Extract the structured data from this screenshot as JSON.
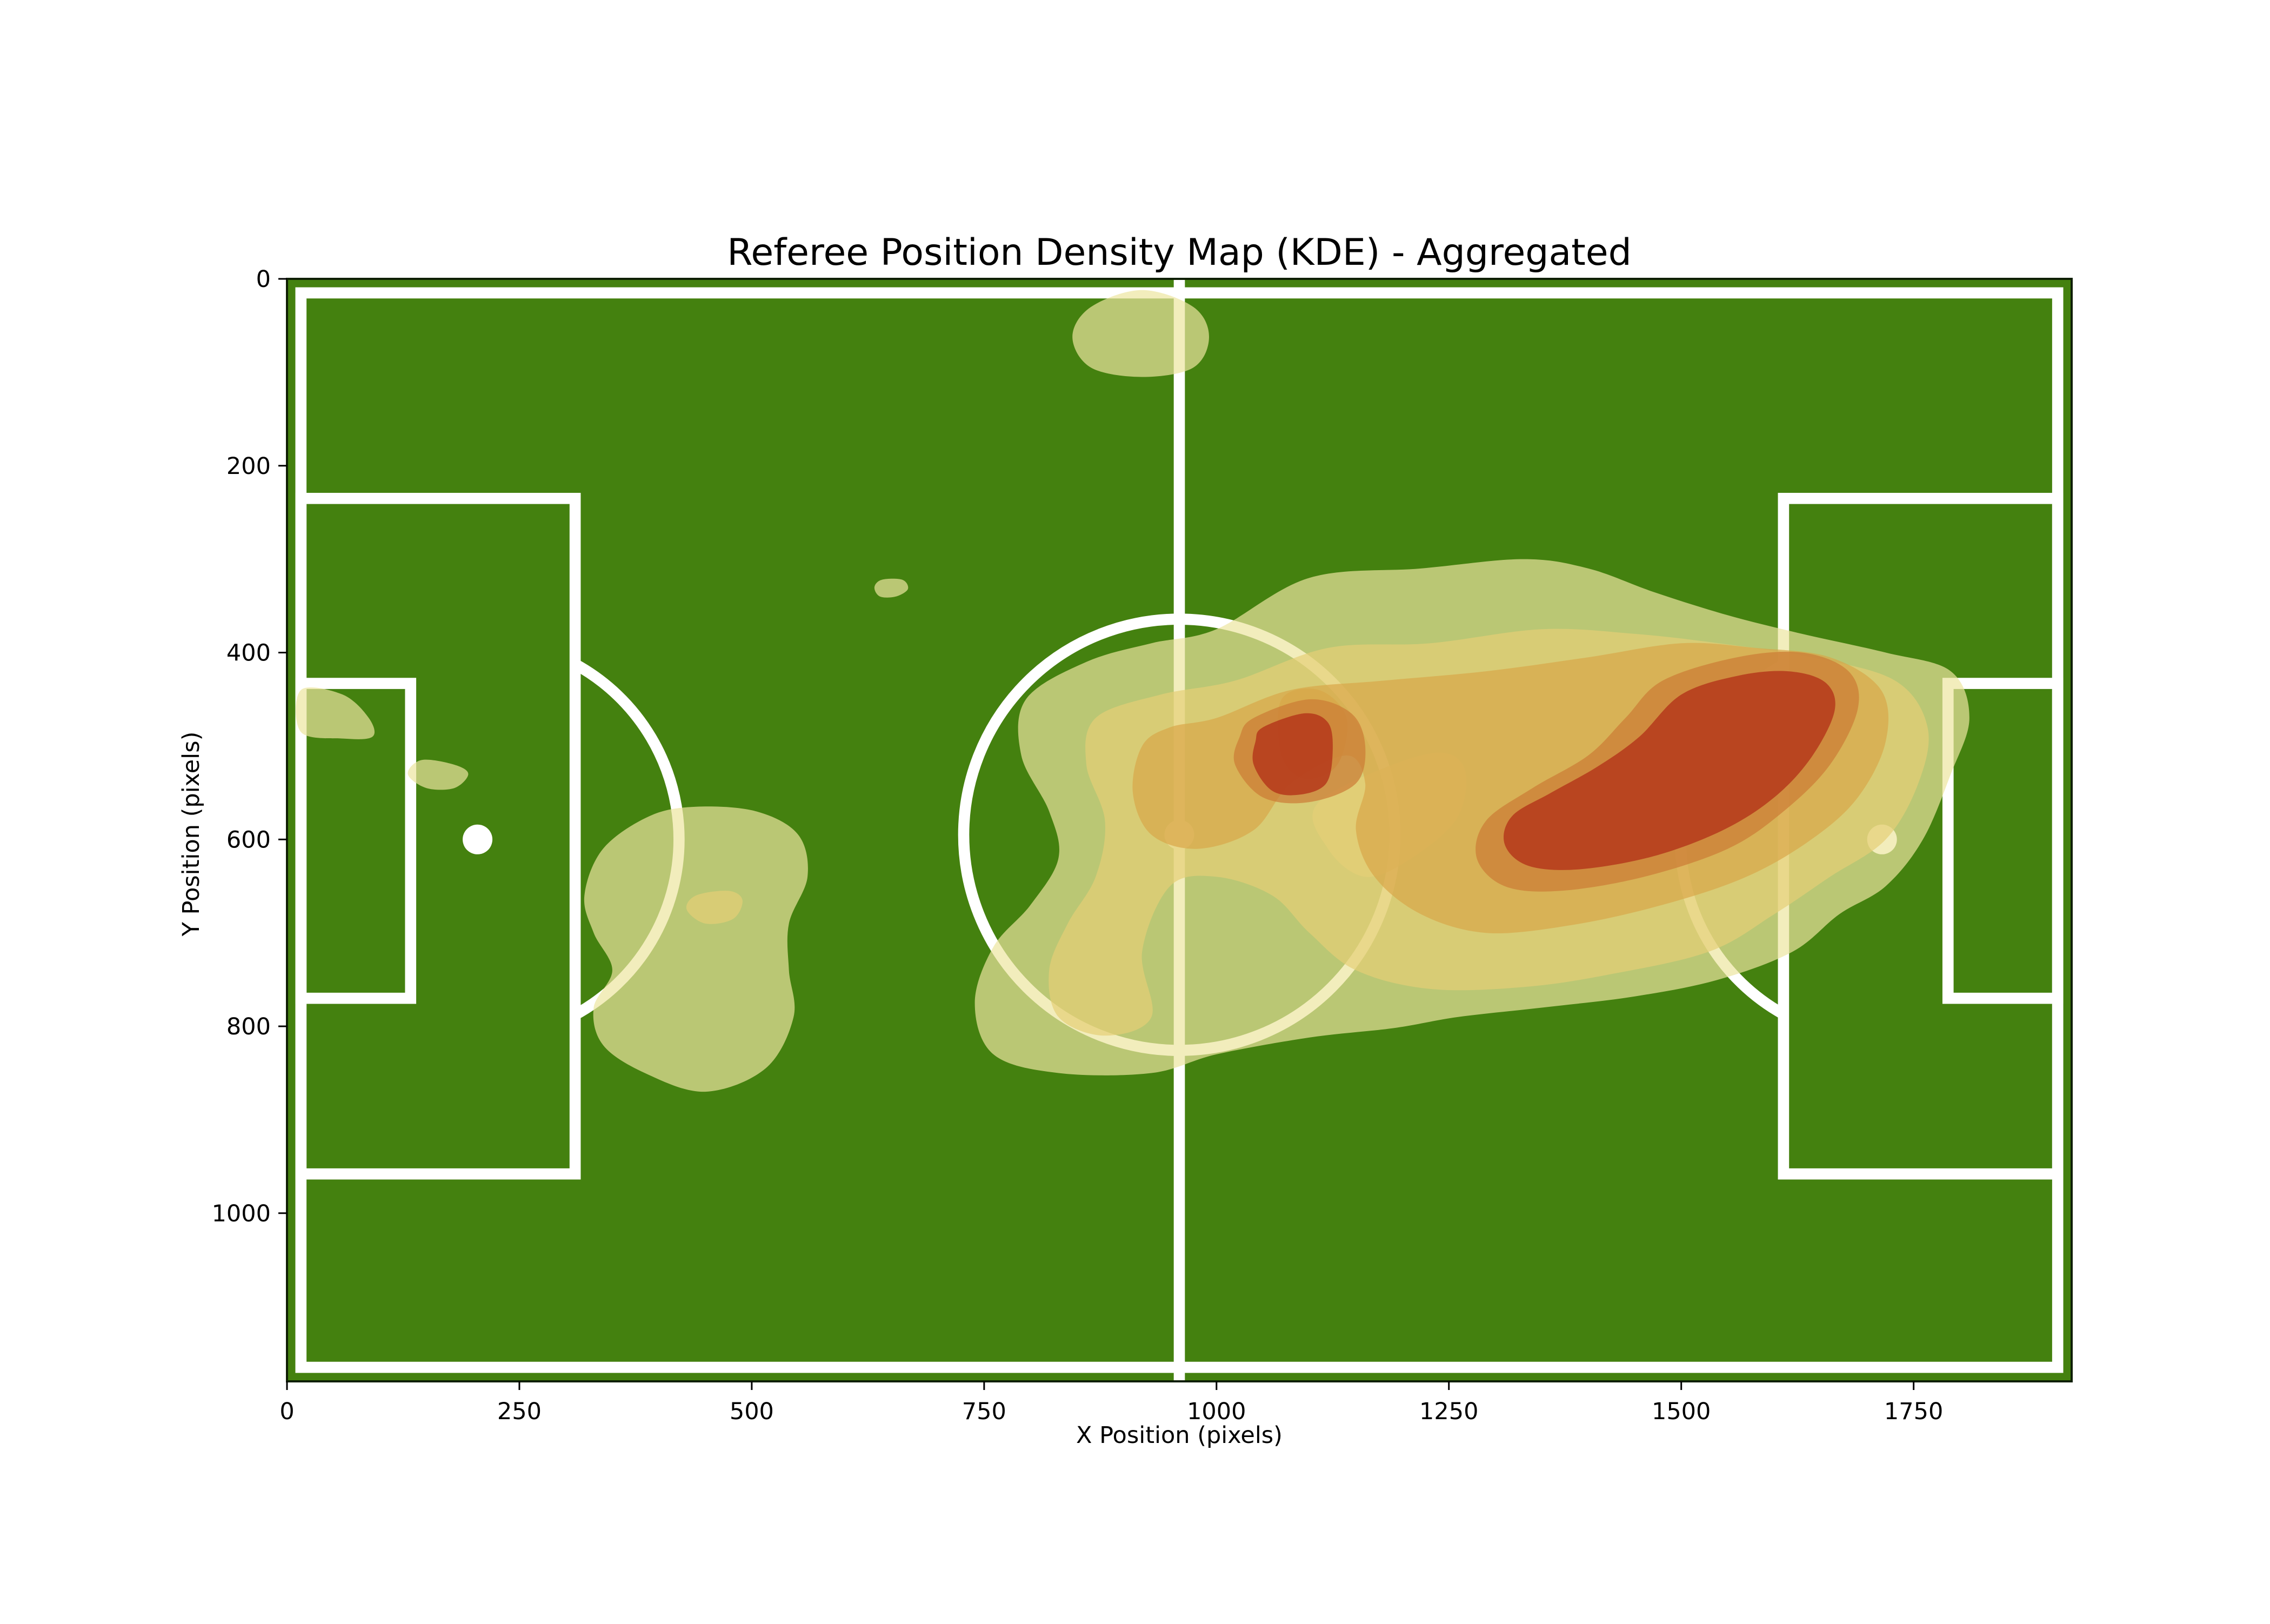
{
  "chart_data": {
    "type": "heatmap",
    "title": "Referee Position Density Map (KDE) - Aggregated",
    "xlabel": "X Position (pixels)",
    "ylabel": "Y Position (pixels)",
    "xlim": [
      0,
      1920
    ],
    "ylim": [
      1180,
      0
    ],
    "x_ticks": [
      0,
      250,
      500,
      750,
      1000,
      1250,
      1500,
      1750
    ],
    "y_ticks": [
      0,
      200,
      400,
      600,
      800,
      1000
    ],
    "y_inverted": true,
    "grid": false,
    "legend": "none",
    "colors": {
      "pitch": "#44810f",
      "lines": "#ffffff",
      "frame": "#0f1f04",
      "levels": [
        "#ede6a0",
        "#e6cf76",
        "#d9a748",
        "#cc7a34",
        "#b5381b"
      ]
    },
    "pitch_markings": {
      "outer": {
        "x0": 15,
        "y0": 15,
        "x1": 1905,
        "y1": 1165
      },
      "halfway_x": 960,
      "center": {
        "x": 960,
        "y": 595,
        "r": 232
      },
      "center_spot_r": 16,
      "penalty_box_left": {
        "x0": 15,
        "y0": 235,
        "x1": 310,
        "y1": 958
      },
      "penalty_box_right": {
        "x0": 1610,
        "y0": 235,
        "x1": 1905,
        "y1": 958
      },
      "goal_box_left": {
        "x0": 15,
        "y0": 433,
        "x1": 133,
        "y1": 770
      },
      "goal_box_right": {
        "x0": 1787,
        "y0": 433,
        "x1": 1905,
        "y1": 770
      },
      "penalty_spot_left": {
        "x": 205,
        "y": 600
      },
      "penalty_spot_right": {
        "x": 1716,
        "y": 600
      },
      "arc_r": 215,
      "line_width": 12
    },
    "kde_levels": [
      {
        "level": 1,
        "regions": [
          [
            [
              920,
              12
            ],
            [
              975,
              30
            ],
            [
              992,
              62
            ],
            [
              975,
              95
            ],
            [
              920,
              105
            ],
            [
              865,
              95
            ],
            [
              845,
              62
            ],
            [
              865,
              30
            ]
          ],
          [
            [
              640,
              322
            ],
            [
              662,
              322
            ],
            [
              668,
              332
            ],
            [
              655,
              340
            ],
            [
              638,
              340
            ],
            [
              632,
              330
            ]
          ],
          [
            [
              15,
              440
            ],
            [
              60,
              445
            ],
            [
              88,
              470
            ],
            [
              92,
              490
            ],
            [
              60,
              492
            ],
            [
              15,
              485
            ]
          ],
          [
            [
              145,
              515
            ],
            [
              180,
              520
            ],
            [
              195,
              530
            ],
            [
              180,
              545
            ],
            [
              150,
              545
            ],
            [
              130,
              530
            ]
          ],
          [
            [
              440,
              565
            ],
            [
              505,
              570
            ],
            [
              550,
              595
            ],
            [
              560,
              640
            ],
            [
              540,
              690
            ],
            [
              540,
              740
            ],
            [
              545,
              790
            ],
            [
              515,
              845
            ],
            [
              450,
              870
            ],
            [
              385,
              850
            ],
            [
              340,
              820
            ],
            [
              330,
              780
            ],
            [
              350,
              740
            ],
            [
              330,
              700
            ],
            [
              320,
              660
            ],
            [
              340,
              610
            ],
            [
              390,
              575
            ]
          ],
          [
            [
              1000,
              375
            ],
            [
              1100,
              320
            ],
            [
              1220,
              310
            ],
            [
              1330,
              300
            ],
            [
              1400,
              310
            ],
            [
              1470,
              335
            ],
            [
              1550,
              360
            ],
            [
              1630,
              380
            ],
            [
              1720,
              400
            ],
            [
              1790,
              420
            ],
            [
              1810,
              470
            ],
            [
              1790,
              530
            ],
            [
              1760,
              600
            ],
            [
              1720,
              650
            ],
            [
              1670,
              680
            ],
            [
              1620,
              720
            ],
            [
              1540,
              750
            ],
            [
              1450,
              768
            ],
            [
              1350,
              780
            ],
            [
              1260,
              790
            ],
            [
              1190,
              802
            ],
            [
              1100,
              812
            ],
            [
              1000,
              830
            ],
            [
              930,
              850
            ],
            [
              830,
              850
            ],
            [
              760,
              830
            ],
            [
              740,
              775
            ],
            [
              760,
              715
            ],
            [
              800,
              670
            ],
            [
              830,
              620
            ],
            [
              820,
              570
            ],
            [
              790,
              510
            ],
            [
              795,
              450
            ],
            [
              860,
              410
            ],
            [
              930,
              390
            ]
          ]
        ]
      },
      {
        "level": 2,
        "regions": [
          [
            [
              440,
              660
            ],
            [
              475,
              655
            ],
            [
              490,
              665
            ],
            [
              480,
              685
            ],
            [
              450,
              690
            ],
            [
              430,
              675
            ]
          ],
          [
            [
              1020,
              430
            ],
            [
              1120,
              395
            ],
            [
              1230,
              390
            ],
            [
              1350,
              375
            ],
            [
              1450,
              380
            ],
            [
              1540,
              390
            ],
            [
              1640,
              405
            ],
            [
              1730,
              430
            ],
            [
              1765,
              480
            ],
            [
              1755,
              540
            ],
            [
              1720,
              600
            ],
            [
              1660,
              640
            ],
            [
              1600,
              680
            ],
            [
              1530,
              720
            ],
            [
              1420,
              745
            ],
            [
              1330,
              758
            ],
            [
              1230,
              760
            ],
            [
              1150,
              740
            ],
            [
              1100,
              700
            ],
            [
              1060,
              660
            ],
            [
              1000,
              640
            ],
            [
              950,
              650
            ],
            [
              920,
              720
            ],
            [
              930,
              790
            ],
            [
              880,
              810
            ],
            [
              830,
              790
            ],
            [
              820,
              740
            ],
            [
              840,
              690
            ],
            [
              870,
              640
            ],
            [
              880,
              580
            ],
            [
              860,
              520
            ],
            [
              870,
              470
            ],
            [
              940,
              445
            ]
          ],
          [
            [
              1110,
              560
            ],
            [
              1220,
              510
            ],
            [
              1265,
              520
            ],
            [
              1260,
              575
            ],
            [
              1210,
              620
            ],
            [
              1160,
              640
            ],
            [
              1120,
              610
            ]
          ]
        ]
      },
      {
        "level": 3,
        "regions": [
          [
            [
              1000,
              470
            ],
            [
              1080,
              440
            ],
            [
              1180,
              430
            ],
            [
              1290,
              420
            ],
            [
              1400,
              405
            ],
            [
              1500,
              390
            ],
            [
              1580,
              395
            ],
            [
              1660,
              405
            ],
            [
              1715,
              440
            ],
            [
              1720,
              495
            ],
            [
              1690,
              555
            ],
            [
              1640,
              600
            ],
            [
              1570,
              640
            ],
            [
              1480,
              670
            ],
            [
              1380,
              692
            ],
            [
              1290,
              700
            ],
            [
              1220,
              680
            ],
            [
              1170,
              640
            ],
            [
              1150,
              590
            ],
            [
              1160,
              540
            ],
            [
              1140,
              510
            ],
            [
              1080,
              540
            ],
            [
              1040,
              590
            ],
            [
              980,
              610
            ],
            [
              930,
              595
            ],
            [
              910,
              550
            ],
            [
              920,
              500
            ],
            [
              950,
              480
            ]
          ],
          [
            [
              1070,
              450
            ],
            [
              1110,
              440
            ],
            [
              1140,
              470
            ],
            [
              1130,
              520
            ],
            [
              1095,
              535
            ],
            [
              1070,
              510
            ]
          ]
        ]
      },
      {
        "level": 4,
        "regions": [
          [
            [
              1040,
              470
            ],
            [
              1100,
              450
            ],
            [
              1145,
              465
            ],
            [
              1160,
              500
            ],
            [
              1150,
              540
            ],
            [
              1100,
              560
            ],
            [
              1050,
              555
            ],
            [
              1020,
              520
            ],
            [
              1025,
              490
            ]
          ],
          [
            [
              1480,
              430
            ],
            [
              1560,
              405
            ],
            [
              1630,
              400
            ],
            [
              1680,
              420
            ],
            [
              1690,
              460
            ],
            [
              1660,
              520
            ],
            [
              1610,
              570
            ],
            [
              1550,
              610
            ],
            [
              1460,
              640
            ],
            [
              1370,
              655
            ],
            [
              1310,
              650
            ],
            [
              1280,
              620
            ],
            [
              1290,
              580
            ],
            [
              1340,
              545
            ],
            [
              1400,
              510
            ],
            [
              1440,
              470
            ]
          ]
        ]
      },
      {
        "level": 5,
        "regions": [
          [
            [
              1050,
              480
            ],
            [
              1095,
              465
            ],
            [
              1120,
              475
            ],
            [
              1125,
              505
            ],
            [
              1118,
              540
            ],
            [
              1090,
              552
            ],
            [
              1060,
              548
            ],
            [
              1040,
              520
            ],
            [
              1042,
              495
            ]
          ],
          [
            [
              1500,
              445
            ],
            [
              1560,
              425
            ],
            [
              1615,
              420
            ],
            [
              1655,
              432
            ],
            [
              1665,
              462
            ],
            [
              1640,
              512
            ],
            [
              1600,
              555
            ],
            [
              1545,
              590
            ],
            [
              1470,
              618
            ],
            [
              1390,
              632
            ],
            [
              1335,
              628
            ],
            [
              1310,
              605
            ],
            [
              1318,
              575
            ],
            [
              1360,
              550
            ],
            [
              1410,
              522
            ],
            [
              1455,
              490
            ]
          ]
        ]
      }
    ]
  }
}
